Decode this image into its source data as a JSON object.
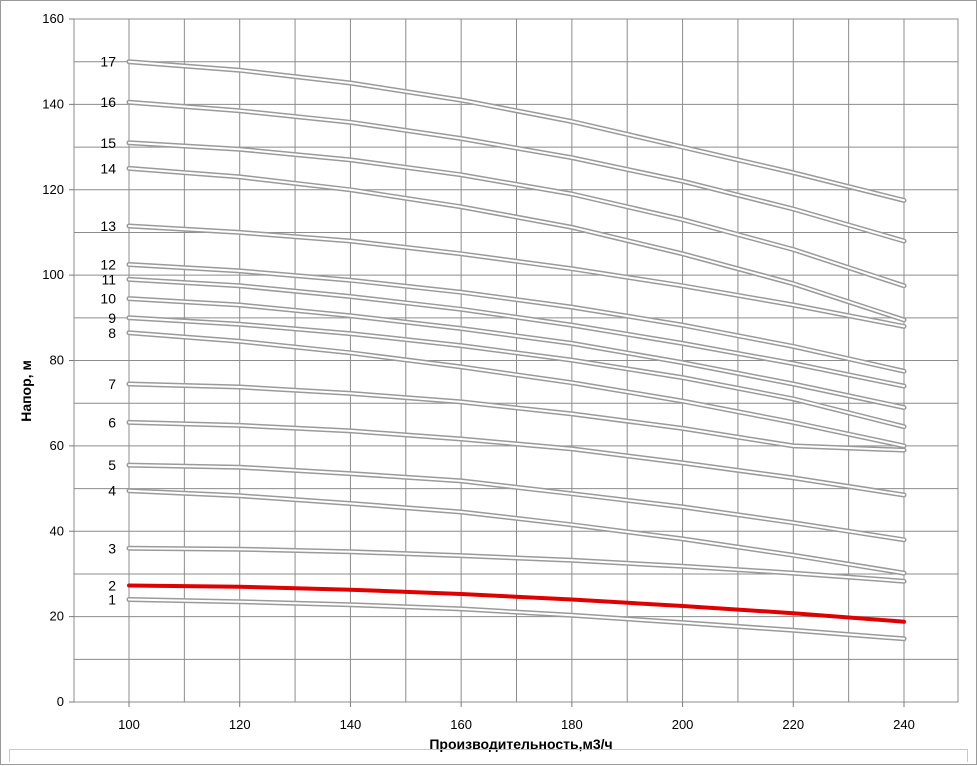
{
  "chart_data": {
    "type": "line",
    "title": "",
    "xlabel": "Производительность,м3/ч",
    "ylabel": "Напор, м",
    "xlim": [
      100,
      240
    ],
    "ylim": [
      0,
      160
    ],
    "x_ticks": [
      "100",
      "120",
      "140",
      "160",
      "180",
      "200",
      "220",
      "240"
    ],
    "y_ticks": [
      "0",
      "20",
      "40",
      "60",
      "80",
      "100",
      "120",
      "140",
      "160"
    ],
    "grid": true,
    "highlight_color": "#e00000",
    "line_color": "#9a9a9a",
    "x": [
      100,
      120,
      140,
      160,
      180,
      200,
      220,
      240
    ],
    "series": [
      {
        "name": "1",
        "values": [
          24.0,
          23.5,
          22.8,
          21.8,
          20.3,
          18.6,
          16.8,
          14.8
        ]
      },
      {
        "name": "2",
        "values": [
          27.3,
          27.0,
          26.3,
          25.3,
          24.0,
          22.5,
          20.8,
          18.8
        ],
        "highlight": true
      },
      {
        "name": "3",
        "values": [
          36.0,
          35.8,
          35.2,
          34.3,
          33.2,
          31.8,
          30.2,
          28.3
        ]
      },
      {
        "name": "4",
        "values": [
          49.5,
          48.3,
          46.5,
          44.5,
          41.5,
          38.2,
          34.4,
          30.2
        ]
      },
      {
        "name": "5",
        "values": [
          55.5,
          55.0,
          53.5,
          51.8,
          48.8,
          45.7,
          42.0,
          38.0
        ]
      },
      {
        "name": "6",
        "values": [
          65.5,
          64.8,
          63.5,
          61.6,
          59.3,
          56.0,
          52.5,
          48.5
        ]
      },
      {
        "name": "7",
        "values": [
          74.5,
          73.8,
          72.3,
          70.3,
          67.5,
          64.1,
          60.0,
          59.0
        ]
      },
      {
        "name": "8",
        "values": [
          86.5,
          84.5,
          81.8,
          78.5,
          74.8,
          70.5,
          65.5,
          60.0
        ]
      },
      {
        "name": "9",
        "values": [
          90.0,
          88.5,
          86.3,
          83.5,
          80.1,
          76.0,
          71.0,
          64.5
        ]
      },
      {
        "name": "10",
        "values": [
          94.5,
          93.0,
          90.5,
          87.5,
          84.0,
          79.5,
          74.5,
          69.0
        ]
      },
      {
        "name": "11",
        "values": [
          99.0,
          97.5,
          95.0,
          92.0,
          88.3,
          84.0,
          79.3,
          74.0
        ]
      },
      {
        "name": "12",
        "values": [
          102.5,
          101.0,
          98.8,
          96.0,
          92.5,
          88.3,
          83.3,
          77.5
        ]
      },
      {
        "name": "13",
        "values": [
          111.5,
          110.0,
          108.0,
          105.0,
          101.5,
          97.5,
          93.0,
          88.0
        ]
      },
      {
        "name": "14",
        "values": [
          125.0,
          123.0,
          120.0,
          116.0,
          111.2,
          105.0,
          98.0,
          89.5
        ]
      },
      {
        "name": "15",
        "values": [
          131.0,
          129.5,
          127.0,
          123.5,
          119.0,
          113.0,
          106.0,
          97.5
        ]
      },
      {
        "name": "16",
        "values": [
          140.5,
          138.5,
          135.8,
          132.0,
          127.5,
          122.0,
          115.5,
          108.0
        ]
      },
      {
        "name": "17",
        "values": [
          150.0,
          148.0,
          145.0,
          141.0,
          136.0,
          130.0,
          124.0,
          117.5
        ]
      }
    ]
  }
}
